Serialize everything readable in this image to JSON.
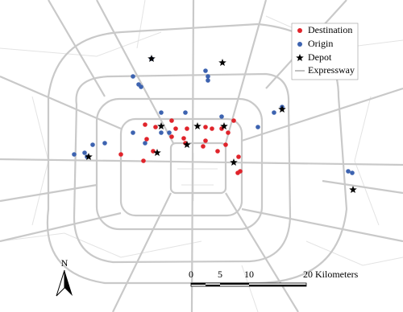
{
  "legend": {
    "items": [
      "Destination",
      "Origin",
      "Depot",
      "Expressway"
    ]
  },
  "scale_bar": {
    "labels": [
      "0",
      "5",
      "10",
      "20 Kilometers"
    ]
  },
  "north_arrow": {
    "label": "N"
  }
}
